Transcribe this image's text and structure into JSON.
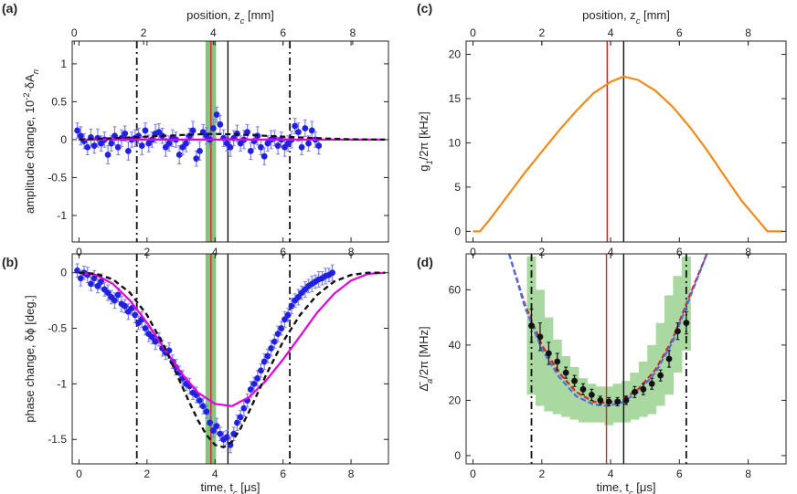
{
  "chart_data": [
    {
      "type": "scatter",
      "panel_label": "(a)",
      "xlabel": "",
      "ylabel": "amplitude change, 10^-2·δA_n",
      "top_xlabel": "position, z_c [mm]",
      "xlim": [
        -0.2,
        9.1
      ],
      "ylim": [
        -1.35,
        1.3
      ],
      "x_ticks": [
        0,
        2,
        4,
        6,
        8
      ],
      "y_ticks": [
        -1,
        -0.5,
        0,
        0.5,
        1
      ],
      "y_tick_labels": [
        "-1",
        "-0.5",
        "0",
        "0.5",
        "1"
      ],
      "top_ticks": [
        0,
        2,
        4,
        6,
        8
      ],
      "top_tick_positions": [
        -0.14,
        1.9,
        3.95,
        6.0,
        8.05
      ],
      "vlines": [
        {
          "x": 1.7,
          "style": "dashdot",
          "color": "#111111"
        },
        {
          "x": 6.2,
          "style": "dashdot",
          "color": "#111111"
        },
        {
          "x": 4.38,
          "style": "solid",
          "color": "#111111"
        },
        {
          "x": 3.88,
          "style": "solid",
          "color": "#e02020"
        }
      ],
      "band": {
        "x0": 3.72,
        "x1": 4.03,
        "color": "#7ec77e"
      },
      "series": [
        {
          "kind": "points",
          "color": "#2020e0",
          "errcolor": "#7f7ff0",
          "x": [
            -0.05,
            0.05,
            0.15,
            0.25,
            0.35,
            0.45,
            0.55,
            0.65,
            0.75,
            0.85,
            0.95,
            1.05,
            1.15,
            1.25,
            1.35,
            1.45,
            1.55,
            1.65,
            1.75,
            1.85,
            1.95,
            2.05,
            2.15,
            2.25,
            2.35,
            2.45,
            2.55,
            2.65,
            2.75,
            2.85,
            2.95,
            3.05,
            3.15,
            3.25,
            3.35,
            3.45,
            3.55,
            3.65,
            3.75,
            3.85,
            3.95,
            4.05,
            4.15,
            4.25,
            4.35,
            4.45,
            4.55,
            4.65,
            4.75,
            4.85,
            4.95,
            5.05,
            5.15,
            5.25,
            5.35,
            5.45,
            5.55,
            5.65,
            5.75,
            5.85,
            5.95,
            6.05,
            6.15,
            6.25,
            6.35,
            6.45,
            6.55,
            6.65,
            6.75,
            6.85,
            6.95,
            7.05
          ],
          "y": [
            0.12,
            0.05,
            -0.02,
            -0.1,
            0.03,
            -0.08,
            0.02,
            -0.05,
            0.0,
            -0.2,
            -0.05,
            0.05,
            -0.1,
            0.02,
            0.08,
            -0.15,
            0.0,
            0.02,
            0.05,
            -0.08,
            0.12,
            -0.05,
            0.0,
            0.08,
            0.1,
            0.05,
            -0.1,
            -0.05,
            0.02,
            0.0,
            -0.2,
            -0.1,
            -0.05,
            0.05,
            0.12,
            -0.25,
            -0.15,
            0.1,
            0.05,
            0.0,
            0.15,
            0.33,
            0.2,
            0.02,
            -0.05,
            -0.1,
            0.02,
            0.08,
            -0.05,
            0.0,
            0.1,
            -0.15,
            -0.02,
            0.05,
            -0.1,
            -0.22,
            -0.05,
            0.0,
            0.02,
            -0.08,
            0.0,
            -0.1,
            -0.05,
            0.0,
            0.18,
            0.1,
            -0.1,
            0.15,
            -0.05,
            0.12,
            0.0,
            -0.08
          ],
          "err": [
            0.1,
            0.12,
            0.1,
            0.1,
            0.11,
            0.1,
            0.12,
            0.1,
            0.1,
            0.12,
            0.1,
            0.12,
            0.1,
            0.11,
            0.1,
            0.12,
            0.1,
            0.11,
            0.1,
            0.12,
            0.1,
            0.11,
            0.1,
            0.12,
            0.11,
            0.1,
            0.12,
            0.1,
            0.11,
            0.1,
            0.12,
            0.1,
            0.11,
            0.1,
            0.12,
            0.1,
            0.12,
            0.1,
            0.11,
            0.1,
            0.12,
            0.1,
            0.12,
            0.11,
            0.1,
            0.12,
            0.1,
            0.11,
            0.1,
            0.12,
            0.1,
            0.11,
            0.1,
            0.12,
            0.1,
            0.11,
            0.1,
            0.12,
            0.1,
            0.11,
            0.1,
            0.12,
            0.1,
            0.11,
            0.1,
            0.12,
            0.1,
            0.11,
            0.1,
            0.12,
            0.1,
            0.11
          ]
        },
        {
          "kind": "curve",
          "color": "#e000e0",
          "width": 2.2,
          "x": [
            0,
            9
          ],
          "y": [
            0,
            0
          ]
        },
        {
          "kind": "curve",
          "color": "#111111",
          "width": 2.2,
          "dash": "6,4",
          "x": [
            0,
            1,
            2,
            3,
            3.5,
            4,
            4.5,
            5,
            6,
            7,
            8,
            9
          ],
          "y": [
            0,
            0.02,
            0.04,
            0.06,
            0.07,
            0.075,
            0.07,
            0.06,
            0.04,
            0.02,
            0.005,
            0
          ]
        }
      ]
    },
    {
      "type": "line",
      "panel_label": "(c)",
      "xlabel": "",
      "ylabel": "g_1/2π [kHz]",
      "top_xlabel": "position, z_c [mm]",
      "xlim": [
        -0.2,
        9.1
      ],
      "ylim": [
        -1.2,
        21.5
      ],
      "x_ticks": [
        0,
        2,
        4,
        6,
        8
      ],
      "y_ticks": [
        0,
        5,
        10,
        15,
        20
      ],
      "y_tick_labels": [
        "0",
        "5",
        "10",
        "15",
        "20"
      ],
      "top_ticks": [
        0,
        2,
        4,
        6,
        8
      ],
      "top_tick_positions": [
        0.0,
        2.0,
        4.0,
        6.0,
        8.0
      ],
      "vlines": [
        {
          "x": 3.9,
          "style": "solid",
          "color": "#e02020"
        },
        {
          "x": 4.38,
          "style": "solid",
          "color": "#111111"
        }
      ],
      "series": [
        {
          "kind": "curve",
          "color": "#f08a18",
          "width": 2.2,
          "x": [
            0,
            0.2,
            0.5,
            1,
            1.5,
            2,
            2.5,
            3,
            3.5,
            4,
            4.38,
            4.8,
            5.3,
            5.8,
            6.3,
            6.8,
            7.3,
            7.8,
            8.3,
            8.56,
            8.8,
            9
          ],
          "y": [
            0,
            0,
            1.4,
            4.0,
            6.6,
            9.0,
            11.4,
            13.6,
            15.6,
            16.9,
            17.5,
            17.1,
            15.9,
            14.1,
            11.8,
            9.2,
            6.3,
            3.5,
            1.2,
            0,
            0,
            0
          ]
        }
      ]
    },
    {
      "type": "scatter",
      "panel_label": "(b)",
      "xlabel": "time, t_c [μs]",
      "ylabel": "phase change, δϕ [deg.]",
      "xlim": [
        -0.2,
        9.1
      ],
      "ylim": [
        -1.72,
        0.17
      ],
      "x_ticks": [
        0,
        2,
        4,
        6,
        8
      ],
      "y_ticks": [
        -1.5,
        -1,
        -0.5,
        0
      ],
      "y_tick_labels": [
        "-1.5",
        "-1",
        "-0.5",
        "0"
      ],
      "vlines": [
        {
          "x": 1.7,
          "style": "dashdot",
          "color": "#111111"
        },
        {
          "x": 6.2,
          "style": "dashdot",
          "color": "#111111"
        },
        {
          "x": 4.38,
          "style": "solid",
          "color": "#111111"
        },
        {
          "x": 3.88,
          "style": "solid",
          "color": "#e02020"
        }
      ],
      "band": {
        "x0": 3.72,
        "x1": 4.03,
        "color": "#7ec77e"
      },
      "series": [
        {
          "kind": "points",
          "color": "#2020e0",
          "errcolor": "#7f7ff0",
          "x": [
            -0.05,
            0.05,
            0.15,
            0.25,
            0.35,
            0.45,
            0.55,
            0.65,
            0.75,
            0.85,
            0.95,
            1.05,
            1.15,
            1.25,
            1.35,
            1.45,
            1.55,
            1.65,
            1.75,
            1.85,
            1.95,
            2.05,
            2.15,
            2.25,
            2.35,
            2.45,
            2.55,
            2.65,
            2.75,
            2.85,
            2.95,
            3.05,
            3.15,
            3.25,
            3.35,
            3.45,
            3.55,
            3.65,
            3.75,
            3.85,
            3.95,
            4.05,
            4.15,
            4.25,
            4.35,
            4.45,
            4.55,
            4.65,
            4.75,
            4.85,
            4.95,
            5.05,
            5.15,
            5.25,
            5.35,
            5.45,
            5.55,
            5.65,
            5.75,
            5.85,
            5.95,
            6.05,
            6.15,
            6.25,
            6.35,
            6.45,
            6.55,
            6.65,
            6.75,
            6.85,
            6.95,
            7.05,
            7.15,
            7.25,
            7.35,
            7.45
          ],
          "y": [
            0.02,
            -0.05,
            0.0,
            -0.02,
            -0.1,
            -0.05,
            -0.12,
            -0.08,
            -0.15,
            -0.18,
            -0.22,
            -0.25,
            -0.2,
            -0.28,
            -0.3,
            -0.35,
            -0.32,
            -0.38,
            -0.45,
            -0.42,
            -0.5,
            -0.55,
            -0.58,
            -0.62,
            -0.6,
            -0.68,
            -0.72,
            -0.7,
            -0.8,
            -0.85,
            -0.9,
            -0.95,
            -1.0,
            -1.02,
            -1.08,
            -1.1,
            -1.15,
            -1.2,
            -1.25,
            -1.35,
            -1.42,
            -1.38,
            -1.45,
            -1.5,
            -1.48,
            -1.55,
            -1.45,
            -1.35,
            -1.3,
            -1.22,
            -1.15,
            -1.05,
            -1.0,
            -0.95,
            -0.88,
            -0.8,
            -0.75,
            -0.68,
            -0.62,
            -0.55,
            -0.5,
            -0.42,
            -0.38,
            -0.3,
            -0.25,
            -0.22,
            -0.18,
            -0.15,
            -0.12,
            -0.1,
            -0.08,
            -0.06,
            -0.05,
            -0.03,
            -0.02,
            0.0
          ],
          "err": [
            0.06,
            0.07,
            0.06,
            0.07,
            0.06,
            0.07,
            0.06,
            0.07,
            0.06,
            0.07,
            0.06,
            0.07,
            0.06,
            0.07,
            0.06,
            0.07,
            0.06,
            0.07,
            0.06,
            0.07,
            0.06,
            0.07,
            0.06,
            0.07,
            0.06,
            0.07,
            0.06,
            0.07,
            0.06,
            0.07,
            0.06,
            0.07,
            0.06,
            0.07,
            0.06,
            0.07,
            0.06,
            0.07,
            0.06,
            0.07,
            0.06,
            0.07,
            0.06,
            0.07,
            0.06,
            0.07,
            0.06,
            0.07,
            0.06,
            0.07,
            0.06,
            0.07,
            0.06,
            0.07,
            0.06,
            0.07,
            0.06,
            0.07,
            0.06,
            0.07,
            0.06,
            0.07,
            0.06,
            0.07,
            0.06,
            0.07,
            0.06,
            0.07,
            0.06,
            0.07,
            0.06,
            0.07,
            0.06,
            0.07,
            0.06,
            0.07
          ]
        },
        {
          "kind": "curve",
          "color": "#e000e0",
          "width": 2.2,
          "x": [
            0,
            0.5,
            1,
            1.5,
            2,
            2.5,
            3,
            3.5,
            4,
            4.5,
            5,
            5.5,
            6,
            6.5,
            7,
            7.5,
            8,
            8.5,
            9
          ],
          "y": [
            0,
            -0.02,
            -0.1,
            -0.25,
            -0.45,
            -0.68,
            -0.9,
            -1.08,
            -1.18,
            -1.2,
            -1.12,
            -0.97,
            -0.78,
            -0.57,
            -0.36,
            -0.19,
            -0.07,
            -0.01,
            0
          ]
        },
        {
          "kind": "curve",
          "color": "#111111",
          "width": 2.4,
          "dash": "6,4",
          "x": [
            0,
            0.5,
            1,
            1.5,
            2,
            2.5,
            3,
            3.25,
            3.5,
            3.75,
            4,
            4.25,
            4.5,
            4.75,
            5,
            5.5,
            6,
            6.5,
            7,
            7.5,
            8,
            8.5,
            9
          ],
          "y": [
            0,
            -0.01,
            -0.06,
            -0.18,
            -0.38,
            -0.66,
            -1.0,
            -1.17,
            -1.33,
            -1.46,
            -1.55,
            -1.57,
            -1.52,
            -1.4,
            -1.25,
            -0.92,
            -0.62,
            -0.38,
            -0.2,
            -0.08,
            -0.02,
            0,
            0
          ]
        }
      ]
    },
    {
      "type": "scatter",
      "panel_label": "(d)",
      "xlabel": "time, t_c [μs]",
      "ylabel": "Δ̄_a/2π [MHz]",
      "xlim": [
        -0.2,
        9.1
      ],
      "ylim": [
        -3,
        73
      ],
      "x_ticks": [
        0,
        2,
        4,
        6,
        8
      ],
      "y_ticks": [
        0,
        20,
        40,
        60
      ],
      "y_tick_labels": [
        "0",
        "20",
        "40",
        "60"
      ],
      "vlines": [
        {
          "x": 1.7,
          "style": "dashdot",
          "color": "#111111"
        },
        {
          "x": 6.2,
          "style": "dashdot",
          "color": "#111111"
        },
        {
          "x": 3.88,
          "style": "solid",
          "color": "#e02020"
        },
        {
          "x": 4.38,
          "style": "solid",
          "color": "#111111"
        }
      ],
      "bars": {
        "color": "#a9d8a1",
        "x": [
          1.7,
          1.95,
          2.2,
          2.45,
          2.7,
          2.95,
          3.2,
          3.45,
          3.7,
          3.95,
          4.2,
          4.45,
          4.7,
          4.95,
          5.2,
          5.45,
          5.7,
          5.95,
          6.2
        ],
        "low": [
          22,
          18,
          16,
          15,
          14,
          13,
          12,
          12,
          12,
          11,
          12,
          12,
          13,
          14,
          15,
          18,
          22,
          30,
          38
        ],
        "high": [
          72,
          60,
          50,
          42,
          36,
          32,
          28,
          26,
          25,
          25,
          26,
          27,
          30,
          34,
          40,
          48,
          58,
          65,
          72
        ]
      },
      "series": [
        {
          "kind": "curve",
          "color": "#e02020",
          "width": 2.2,
          "dash": "6,3",
          "x": [
            1.05,
            1.5,
            2,
            2.5,
            3,
            3.5,
            3.9,
            4.3,
            4.8,
            5.3,
            5.8,
            6.3,
            6.8
          ],
          "y": [
            73,
            55,
            40,
            30,
            23,
            19.5,
            19,
            20,
            24,
            31,
            42,
            58,
            73
          ]
        },
        {
          "kind": "curve",
          "color": "#4a6ee0",
          "width": 2.2,
          "dash": "6,3",
          "x": [
            1.05,
            1.5,
            2,
            2.5,
            3,
            3.5,
            3.9,
            4.3,
            4.8,
            5.3,
            5.8,
            6.3,
            6.8
          ],
          "y": [
            73,
            54,
            38.5,
            28.5,
            21.5,
            18.5,
            18,
            19,
            23,
            30,
            41,
            57,
            73
          ]
        },
        {
          "kind": "points",
          "color": "#111111",
          "errcolor": "#111111",
          "x": [
            1.7,
            1.95,
            2.2,
            2.45,
            2.7,
            2.95,
            3.2,
            3.45,
            3.7,
            3.95,
            4.2,
            4.45,
            4.7,
            4.95,
            5.2,
            5.45,
            5.7,
            5.95,
            6.2
          ],
          "y": [
            47,
            43,
            37,
            34,
            30,
            27,
            24,
            22,
            20,
            19.5,
            19.5,
            20,
            23,
            24,
            26,
            29,
            35,
            45,
            48
          ],
          "err": [
            6,
            5,
            4,
            3,
            2,
            2,
            2,
            2,
            1.5,
            1.5,
            1.5,
            1.5,
            2,
            2,
            2,
            2,
            3,
            3,
            4
          ]
        }
      ]
    }
  ]
}
